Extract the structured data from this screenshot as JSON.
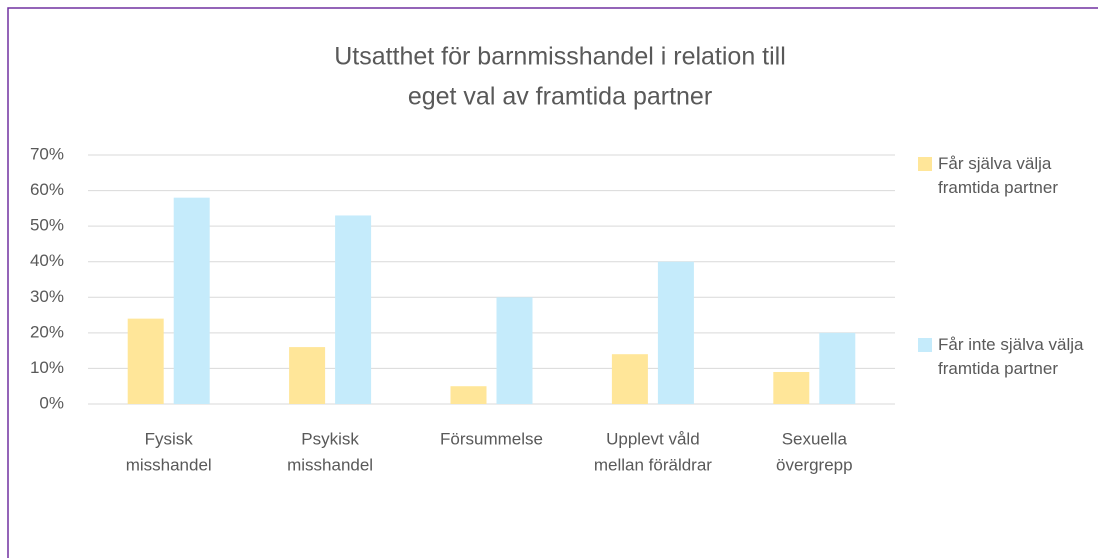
{
  "chart_data": {
    "type": "bar",
    "title": [
      "Utsatthet för barnmisshandel i relation till",
      "eget val av framtida partner"
    ],
    "categories": [
      [
        "Fysisk",
        "misshandel"
      ],
      [
        "Psykisk",
        "misshandel"
      ],
      [
        "Försummelse"
      ],
      [
        "Upplevt våld",
        "mellan föräldrar"
      ],
      [
        "Sexuella",
        "övergrepp"
      ]
    ],
    "series": [
      {
        "name": "Får själva välja framtida partner",
        "color": "#ffe699",
        "values": [
          24,
          16,
          5,
          14,
          9
        ]
      },
      {
        "name": "Får inte själva välja framtida partner",
        "color": "#c5ebfb",
        "values": [
          58,
          53,
          30,
          40,
          20
        ]
      }
    ],
    "ylim": [
      0,
      70
    ],
    "yticks": [
      {
        "value": 0,
        "label": "0%"
      },
      {
        "value": 10,
        "label": "10%"
      },
      {
        "value": 20,
        "label": "20%"
      },
      {
        "value": 30,
        "label": "30%"
      },
      {
        "value": 40,
        "label": "40%"
      },
      {
        "value": 50,
        "label": "50%"
      },
      {
        "value": 60,
        "label": "60%"
      },
      {
        "value": 70,
        "label": "70%"
      }
    ],
    "grid": true,
    "legend": "right"
  }
}
